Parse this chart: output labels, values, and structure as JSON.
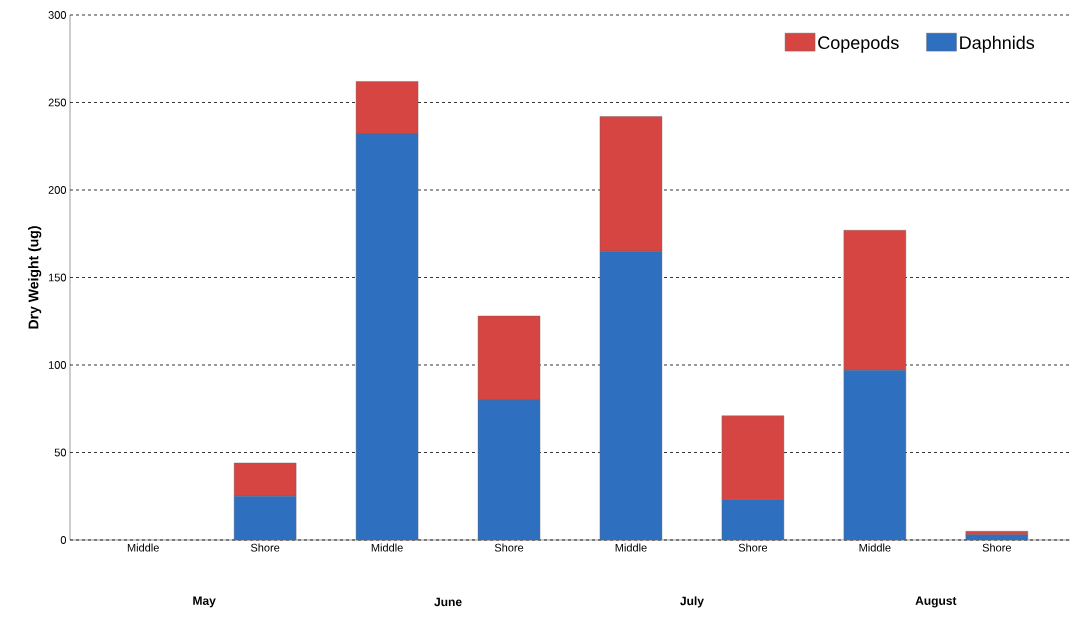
{
  "chart_data": {
    "type": "bar",
    "stacked": true,
    "ylabel": "Dry Weight (ug)",
    "categories": [
      "Middle",
      "Shore",
      "Middle",
      "Shore",
      "Middle",
      "Shore",
      "Middle",
      "Shore"
    ],
    "series": [
      {
        "name": "Daphnids",
        "color": "#2f6fc0",
        "values": [
          0,
          25,
          232,
          80,
          165,
          23,
          97,
          3
        ]
      },
      {
        "name": "Copepods",
        "color": "#d64541",
        "values": [
          0,
          19,
          30,
          48,
          77,
          48,
          80,
          2
        ]
      }
    ],
    "annotations": [
      "May",
      "June",
      "July",
      "August"
    ],
    "ylim": [
      0,
      300
    ],
    "yticks": [
      0,
      50,
      100,
      150,
      200,
      250,
      300
    ],
    "grid": "y",
    "legend": "top right"
  }
}
